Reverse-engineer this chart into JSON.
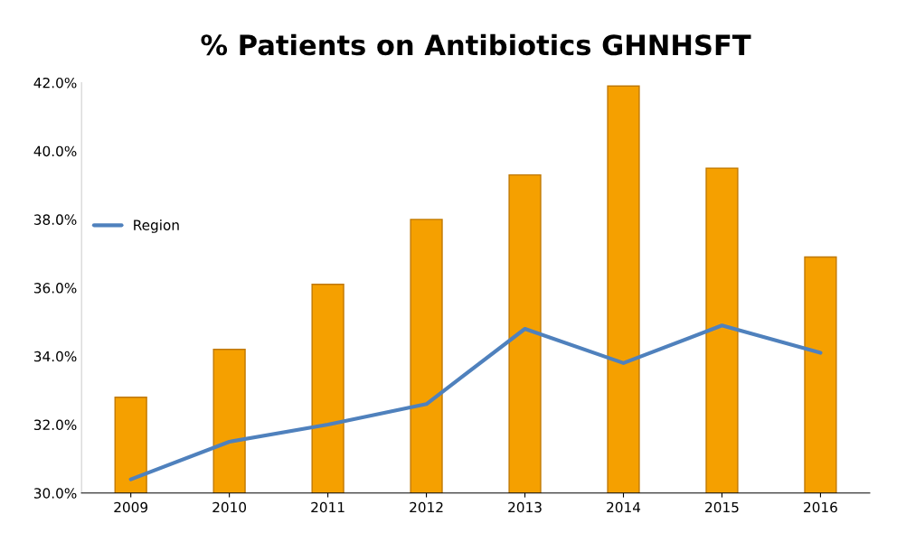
{
  "chart_data": {
    "type": "bar",
    "title": "% Patients on Antibiotics GHNHSFT",
    "categories": [
      "2009",
      "2010",
      "2011",
      "2012",
      "2013",
      "2014",
      "2015",
      "2016"
    ],
    "series": [
      {
        "color": "#f5a000",
        "values": [
          32.8,
          34.2,
          36.1,
          38.0,
          39.3,
          41.9,
          39.5,
          36.9
        ]
      },
      {
        "type": "line",
        "name": "Region",
        "color": "#4f81bd",
        "values": [
          30.4,
          31.5,
          32.0,
          32.6,
          34.8,
          33.8,
          34.9,
          34.1
        ]
      }
    ],
    "ylim": [
      30,
      42
    ],
    "yticks": [
      {
        "value": 30,
        "label": "30.0%"
      },
      {
        "value": 32,
        "label": "32.0%"
      },
      {
        "value": 34,
        "label": "34.0%"
      },
      {
        "value": 36,
        "label": "36.0%"
      },
      {
        "value": 38,
        "label": "38.0%"
      },
      {
        "value": 40,
        "label": "40.0%"
      },
      {
        "value": 42,
        "label": "42.0%"
      }
    ],
    "grid": false,
    "legend": "center left"
  }
}
